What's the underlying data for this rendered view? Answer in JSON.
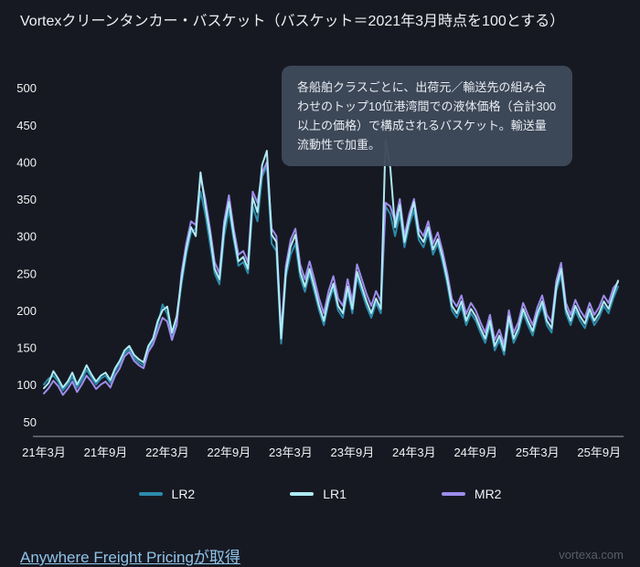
{
  "title": "Vortexクリーンタンカー・バスケット（バスケット＝2021年3月時点を100とする）",
  "tooltip": {
    "text": "各船舶クラスごとに、出荷元／輸送先の組み合わせのトップ10位港湾間での液体価格（合計300以上の価格）で構成されるバスケット。輸送量流動性で加重。"
  },
  "footer": {
    "link": "Anywhere Freight Pricingが取得",
    "watermark": "vortexa.com"
  },
  "colors": {
    "background": "#171922",
    "tooltip_bg": "rgba(62,73,90,0.96)",
    "axis_text": "#f2f3f5",
    "link": "#8fc3e8",
    "lr2": "#2d8bab",
    "lr1": "#aeeaf2",
    "mr2": "#9e8cec"
  },
  "chart_data": {
    "type": "line",
    "title": "Vortexクリーンタンカー・バスケット（バスケット＝2021年3月時点を100とする）",
    "xlabel": "",
    "ylabel": "",
    "grid": false,
    "legend_position": "bottom",
    "ylim": [
      30,
      510
    ],
    "yticks": [
      50,
      100,
      150,
      200,
      250,
      300,
      350,
      400,
      450,
      500
    ],
    "x_tick_labels": [
      "21年3月",
      "21年9月",
      "22年3月",
      "22年9月",
      "23年3月",
      "23年9月",
      "24年3月",
      "24年9月",
      "25年3月",
      "25年9月"
    ],
    "x_tick_indices": [
      0,
      13,
      26,
      39,
      52,
      65,
      78,
      91,
      104,
      117
    ],
    "x_unit": "biweekly points from 2021-03 to 2025-11",
    "series": [
      {
        "name": "LR2",
        "color": "#2d8bab",
        "values": [
          100,
          108,
          112,
          104,
          92,
          100,
          110,
          96,
          106,
          120,
          110,
          100,
          108,
          112,
          102,
          118,
          128,
          142,
          148,
          136,
          130,
          126,
          148,
          158,
          180,
          208,
          195,
          165,
          185,
          235,
          275,
          305,
          310,
          360,
          330,
          290,
          250,
          235,
          300,
          335,
          295,
          260,
          265,
          250,
          340,
          320,
          380,
          395,
          290,
          280,
          155,
          245,
          275,
          290,
          245,
          225,
          250,
          225,
          200,
          180,
          210,
          230,
          200,
          190,
          225,
          196,
          245,
          225,
          205,
          190,
          210,
          196,
          340,
          330,
          300,
          330,
          285,
          315,
          335,
          295,
          285,
          305,
          275,
          290,
          265,
          235,
          200,
          190,
          205,
          180,
          196,
          186,
          170,
          156,
          180,
          146,
          160,
          140,
          186,
          156,
          170,
          196,
          180,
          166,
          190,
          206,
          180,
          170,
          226,
          248,
          196,
          180,
          200,
          186,
          176,
          196,
          180,
          190,
          206,
          196,
          216,
          232
        ]
      },
      {
        "name": "LR1",
        "color": "#aeeaf2",
        "values": [
          95,
          102,
          118,
          108,
          96,
          104,
          116,
          100,
          112,
          126,
          114,
          104,
          112,
          116,
          106,
          122,
          132,
          146,
          152,
          140,
          134,
          130,
          152,
          162,
          186,
          200,
          205,
          170,
          192,
          242,
          282,
          312,
          300,
          386,
          342,
          302,
          256,
          242,
          312,
          346,
          302,
          266,
          272,
          256,
          352,
          332,
          396,
          415,
          302,
          292,
          162,
          252,
          286,
          302,
          252,
          232,
          256,
          232,
          206,
          186,
          216,
          236,
          206,
          196,
          232,
          202,
          252,
          232,
          212,
          196,
          216,
          202,
          430,
          392,
          312,
          342,
          292,
          322,
          346,
          302,
          292,
          312,
          282,
          296,
          272,
          242,
          206,
          196,
          212,
          186,
          202,
          192,
          176,
          162,
          186,
          152,
          166,
          146,
          192,
          162,
          176,
          202,
          186,
          172,
          196,
          212,
          186,
          176,
          232,
          256,
          202,
          186,
          206,
          192,
          182,
          202,
          186,
          196,
          212,
          202,
          222,
          240
        ]
      },
      {
        "name": "MR2",
        "color": "#9e8cec",
        "values": [
          88,
          95,
          105,
          98,
          86,
          94,
          104,
          90,
          100,
          112,
          104,
          94,
          100,
          104,
          96,
          112,
          122,
          138,
          144,
          132,
          126,
          122,
          144,
          154,
          172,
          190,
          185,
          160,
          180,
          250,
          290,
          320,
          315,
          380,
          350,
          310,
          265,
          250,
          320,
          355,
          310,
          275,
          280,
          265,
          360,
          345,
          385,
          400,
          310,
          300,
          170,
          260,
          295,
          310,
          262,
          242,
          266,
          242,
          216,
          196,
          226,
          246,
          216,
          206,
          242,
          212,
          262,
          242,
          222,
          206,
          226,
          212,
          345,
          340,
          320,
          350,
          300,
          330,
          350,
          310,
          300,
          320,
          290,
          305,
          280,
          250,
          215,
          205,
          220,
          195,
          210,
          200,
          184,
          170,
          194,
          160,
          174,
          154,
          200,
          170,
          184,
          210,
          194,
          180,
          204,
          220,
          194,
          184,
          240,
          264,
          210,
          194,
          214,
          200,
          190,
          210,
          194,
          204,
          220,
          210,
          230,
          238
        ]
      }
    ]
  }
}
